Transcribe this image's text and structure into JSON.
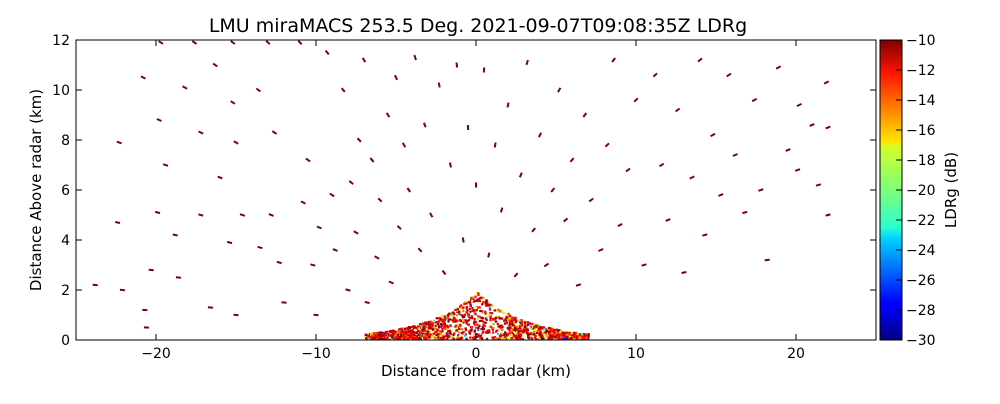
{
  "chart_data": {
    "type": "scatter",
    "title": "LMU miraMACS 253.5 Deg. 2021-09-07T09:08:35Z  LDRg",
    "xlabel": "Distance from radar (km)",
    "ylabel": "Distance Above radar  (km)",
    "xlim": [
      -25,
      25
    ],
    "ylim": [
      0,
      12
    ],
    "xticks": [
      -20,
      -10,
      0,
      10,
      20
    ],
    "xtick_labels": [
      "−20",
      "−10",
      "0",
      "10",
      "20"
    ],
    "yticks": [
      0,
      2,
      4,
      6,
      8,
      10,
      12
    ],
    "ytick_labels": [
      "0",
      "2",
      "4",
      "6",
      "8",
      "10",
      "12"
    ],
    "grid": false,
    "colorbar": {
      "label": "LDRg (dB)",
      "range": [
        -30,
        -10
      ],
      "ticks": [
        -10,
        -12,
        -14,
        -16,
        -18,
        -20,
        -22,
        -24,
        -26,
        -28,
        -30
      ],
      "tick_labels": [
        "−10",
        "−12",
        "−14",
        "−16",
        "−18",
        "−20",
        "−22",
        "−24",
        "−26",
        "−28",
        "−30"
      ],
      "colormap": "jet"
    },
    "series": [
      {
        "description_of_pattern": "sparse dark-red speckles across upper region, dense mixed-color returns near radar",
        "points": [
          {
            "x": -22.3,
            "y": 7.9,
            "v": -10
          },
          {
            "x": -22.4,
            "y": 4.7,
            "v": -10
          },
          {
            "x": -23.8,
            "y": 2.2,
            "v": -10
          },
          {
            "x": -22.1,
            "y": 2.0,
            "v": -10
          },
          {
            "x": -20.8,
            "y": 10.5,
            "v": -10
          },
          {
            "x": -19.7,
            "y": 11.9,
            "v": -10
          },
          {
            "x": -19.8,
            "y": 8.8,
            "v": -10
          },
          {
            "x": -19.4,
            "y": 7.0,
            "v": -10
          },
          {
            "x": -19.9,
            "y": 5.1,
            "v": -10
          },
          {
            "x": -20.3,
            "y": 2.8,
            "v": -10
          },
          {
            "x": -20.7,
            "y": 1.2,
            "v": -10
          },
          {
            "x": -20.6,
            "y": 0.5,
            "v": -10
          },
          {
            "x": -18.8,
            "y": 4.2,
            "v": -10
          },
          {
            "x": -18.6,
            "y": 2.5,
            "v": -10
          },
          {
            "x": -18.2,
            "y": 10.1,
            "v": -10
          },
          {
            "x": -17.6,
            "y": 11.9,
            "v": -10
          },
          {
            "x": -17.2,
            "y": 8.3,
            "v": -10
          },
          {
            "x": -17.2,
            "y": 5.0,
            "v": -10
          },
          {
            "x": -16.6,
            "y": 1.3,
            "v": -10
          },
          {
            "x": -16.3,
            "y": 11.0,
            "v": -10
          },
          {
            "x": -16.0,
            "y": 6.5,
            "v": -10
          },
          {
            "x": -15.4,
            "y": 3.9,
            "v": -10
          },
          {
            "x": -15.2,
            "y": 11.9,
            "v": -10
          },
          {
            "x": -15.2,
            "y": 9.5,
            "v": -10
          },
          {
            "x": -15.0,
            "y": 7.9,
            "v": -10
          },
          {
            "x": -15.0,
            "y": 1.0,
            "v": -10
          },
          {
            "x": -14.6,
            "y": 5.0,
            "v": -10
          },
          {
            "x": -13.5,
            "y": 3.7,
            "v": -10
          },
          {
            "x": -13.6,
            "y": 10.0,
            "v": -10
          },
          {
            "x": -13.0,
            "y": 11.9,
            "v": -10
          },
          {
            "x": -12.8,
            "y": 5.0,
            "v": -10
          },
          {
            "x": -12.6,
            "y": 8.3,
            "v": -10
          },
          {
            "x": -12.3,
            "y": 3.1,
            "v": -10
          },
          {
            "x": -12.0,
            "y": 1.5,
            "v": -10
          },
          {
            "x": -11.0,
            "y": 11.9,
            "v": -10
          },
          {
            "x": -10.8,
            "y": 5.5,
            "v": -10
          },
          {
            "x": -10.5,
            "y": 7.2,
            "v": -10
          },
          {
            "x": -10.2,
            "y": 3.0,
            "v": -10
          },
          {
            "x": -10.0,
            "y": 1.0,
            "v": -10
          },
          {
            "x": -9.8,
            "y": 4.5,
            "v": -10
          },
          {
            "x": -9.3,
            "y": 11.5,
            "v": -10
          },
          {
            "x": -9.0,
            "y": 5.8,
            "v": -10
          },
          {
            "x": -8.8,
            "y": 3.6,
            "v": -10
          },
          {
            "x": -8.3,
            "y": 10.0,
            "v": -10
          },
          {
            "x": -8.0,
            "y": 2.0,
            "v": -10
          },
          {
            "x": -7.8,
            "y": 6.3,
            "v": -10
          },
          {
            "x": -7.5,
            "y": 4.3,
            "v": -10
          },
          {
            "x": -7.3,
            "y": 8.0,
            "v": -10
          },
          {
            "x": -7.0,
            "y": 11.2,
            "v": -10
          },
          {
            "x": -6.8,
            "y": 1.5,
            "v": -10
          },
          {
            "x": -6.5,
            "y": 7.2,
            "v": -10
          },
          {
            "x": -6.2,
            "y": 3.3,
            "v": -10
          },
          {
            "x": -6.0,
            "y": 5.6,
            "v": -10
          },
          {
            "x": -5.5,
            "y": 9.0,
            "v": -10
          },
          {
            "x": -5.3,
            "y": 2.3,
            "v": -10
          },
          {
            "x": -5.0,
            "y": 10.5,
            "v": -10
          },
          {
            "x": -4.8,
            "y": 4.5,
            "v": -10
          },
          {
            "x": -4.5,
            "y": 7.8,
            "v": -10
          },
          {
            "x": -4.2,
            "y": 6.0,
            "v": -10
          },
          {
            "x": -3.8,
            "y": 11.3,
            "v": -10
          },
          {
            "x": -3.5,
            "y": 3.6,
            "v": -10
          },
          {
            "x": -3.2,
            "y": 8.6,
            "v": -10
          },
          {
            "x": -2.8,
            "y": 5.0,
            "v": -10
          },
          {
            "x": -2.3,
            "y": 10.2,
            "v": -10
          },
          {
            "x": -2.0,
            "y": 2.7,
            "v": -10
          },
          {
            "x": -1.6,
            "y": 7.0,
            "v": -10
          },
          {
            "x": -1.2,
            "y": 11.0,
            "v": -10
          },
          {
            "x": -0.8,
            "y": 4.0,
            "v": -10
          },
          {
            "x": -0.5,
            "y": 8.5,
            "v": -10
          },
          {
            "x": 0.0,
            "y": 6.2,
            "v": -10
          },
          {
            "x": 0.5,
            "y": 10.8,
            "v": -10
          },
          {
            "x": 0.8,
            "y": 3.4,
            "v": -10
          },
          {
            "x": 1.2,
            "y": 7.8,
            "v": -10
          },
          {
            "x": 1.6,
            "y": 5.2,
            "v": -10
          },
          {
            "x": 2.0,
            "y": 9.4,
            "v": -10
          },
          {
            "x": 2.5,
            "y": 2.6,
            "v": -10
          },
          {
            "x": 2.8,
            "y": 6.6,
            "v": -10
          },
          {
            "x": 3.2,
            "y": 11.1,
            "v": -10
          },
          {
            "x": 3.6,
            "y": 4.4,
            "v": -10
          },
          {
            "x": 4.0,
            "y": 8.2,
            "v": -10
          },
          {
            "x": 4.4,
            "y": 3.0,
            "v": -10
          },
          {
            "x": 4.8,
            "y": 6.0,
            "v": -10
          },
          {
            "x": 5.2,
            "y": 10.0,
            "v": -10
          },
          {
            "x": 5.6,
            "y": 4.8,
            "v": -10
          },
          {
            "x": 6.0,
            "y": 7.2,
            "v": -10
          },
          {
            "x": 6.4,
            "y": 2.2,
            "v": -10
          },
          {
            "x": 6.8,
            "y": 9.0,
            "v": -10
          },
          {
            "x": 7.2,
            "y": 5.6,
            "v": -10
          },
          {
            "x": 7.8,
            "y": 3.6,
            "v": -10
          },
          {
            "x": 8.2,
            "y": 7.8,
            "v": -10
          },
          {
            "x": 8.6,
            "y": 11.2,
            "v": -10
          },
          {
            "x": 9.0,
            "y": 4.6,
            "v": -10
          },
          {
            "x": 9.5,
            "y": 6.8,
            "v": -10
          },
          {
            "x": 10.0,
            "y": 9.6,
            "v": -10
          },
          {
            "x": 10.5,
            "y": 3.0,
            "v": -10
          },
          {
            "x": 11.2,
            "y": 10.6,
            "v": -10
          },
          {
            "x": 11.6,
            "y": 7.0,
            "v": -10
          },
          {
            "x": 12.0,
            "y": 4.8,
            "v": -10
          },
          {
            "x": 12.6,
            "y": 9.2,
            "v": -10
          },
          {
            "x": 13.0,
            "y": 2.7,
            "v": -10
          },
          {
            "x": 13.5,
            "y": 6.5,
            "v": -10
          },
          {
            "x": 14.0,
            "y": 11.2,
            "v": -10
          },
          {
            "x": 14.3,
            "y": 4.2,
            "v": -10
          },
          {
            "x": 14.8,
            "y": 8.2,
            "v": -10
          },
          {
            "x": 15.3,
            "y": 5.8,
            "v": -10
          },
          {
            "x": 15.8,
            "y": 10.6,
            "v": -10
          },
          {
            "x": 16.2,
            "y": 7.4,
            "v": -10
          },
          {
            "x": 16.8,
            "y": 5.1,
            "v": -10
          },
          {
            "x": 17.4,
            "y": 9.6,
            "v": -10
          },
          {
            "x": 17.8,
            "y": 6.0,
            "v": -10
          },
          {
            "x": 18.2,
            "y": 3.2,
            "v": -10
          },
          {
            "x": 18.9,
            "y": 10.9,
            "v": -10
          },
          {
            "x": 19.5,
            "y": 7.6,
            "v": -10
          },
          {
            "x": 20.1,
            "y": 6.8,
            "v": -10
          },
          {
            "x": 20.2,
            "y": 9.4,
            "v": -10
          },
          {
            "x": 21.0,
            "y": 8.6,
            "v": -10
          },
          {
            "x": 21.4,
            "y": 6.2,
            "v": -10
          },
          {
            "x": 21.9,
            "y": 10.3,
            "v": -10
          },
          {
            "x": 22.0,
            "y": 8.5,
            "v": -10
          },
          {
            "x": 22.0,
            "y": 5.0,
            "v": -10
          }
        ]
      }
    ]
  }
}
